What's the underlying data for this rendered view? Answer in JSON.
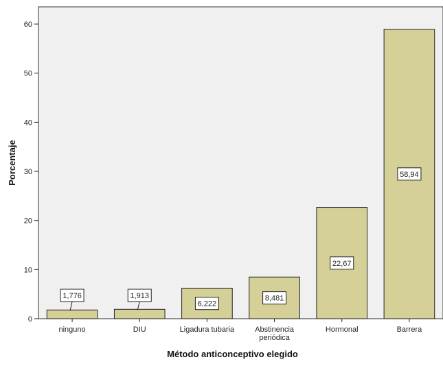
{
  "chart_data": {
    "type": "bar",
    "categories": [
      [
        "ninguno"
      ],
      [
        "DIU"
      ],
      [
        "Ligadura tubaria"
      ],
      [
        "Abstinencia",
        "periódica"
      ],
      [
        "Hormonal"
      ],
      [
        "Barrera"
      ]
    ],
    "values": [
      1.776,
      1.913,
      6.222,
      8.481,
      22.67,
      58.94
    ],
    "data_labels": [
      "1,776",
      "1,913",
      "6,222",
      "8,481",
      "22,67",
      "58,94"
    ],
    "xlabel": "Método anticonceptivo elegido",
    "ylabel": "Porcentaje",
    "ylim": [
      0,
      63.5
    ],
    "yticks": [
      0,
      10,
      20,
      30,
      40,
      50,
      60
    ],
    "bar_color": "#d5cf98",
    "plot_background": "#f0f0f0",
    "grid": false
  }
}
